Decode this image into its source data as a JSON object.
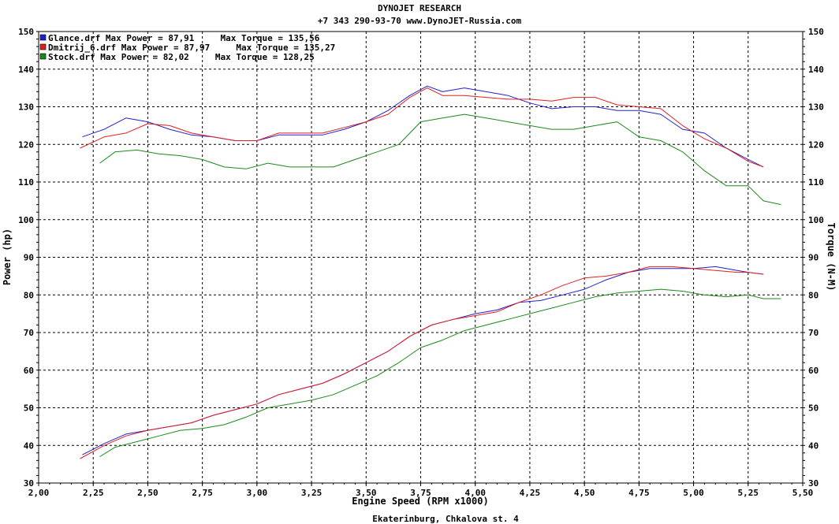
{
  "header": {
    "line1": "DYNOJET RESEARCH",
    "line2": "+7 343 290-93-70 www.DynoJET-Russia.com"
  },
  "footer": "Ekaterinburg, Chkalova st. 4",
  "colors": {
    "glance": "#2020d0",
    "dmitrij": "#e02020",
    "stock": "#1a8a1a",
    "grid": "#000000",
    "background": "#ffffff"
  },
  "chart_data": {
    "type": "line",
    "title": "",
    "xlabel": "Engine Speed (RPM x1000)",
    "ylabel": "Power (hp)",
    "ylabel_right": "Torque (N-M)",
    "xlim": [
      2.0,
      5.5
    ],
    "ylim": [
      30,
      150
    ],
    "ylim_right": [
      30,
      150
    ],
    "x_ticks": [
      "2,00",
      "2,25",
      "2,50",
      "2,75",
      "3,00",
      "3,25",
      "3,50",
      "3,75",
      "4,00",
      "4,25",
      "4,50",
      "4,75",
      "5,00",
      "5,25",
      "5,50"
    ],
    "y_ticks": [
      "30",
      "40",
      "50",
      "60",
      "70",
      "80",
      "90",
      "100",
      "110",
      "120",
      "130",
      "140",
      "150"
    ],
    "grid": true,
    "legend_position": "top-left",
    "legend": [
      {
        "label": "Glance.drf Max Power = 87,91     Max Torque = 135,56",
        "color": "#2020d0"
      },
      {
        "label": "Dmitrij_6.drf Max Power = 87,97     Max Torque = 135,27",
        "color": "#e02020"
      },
      {
        "label": "Stock.drf Max Power = 82,02     Max Torque = 128,25",
        "color": "#1a8a1a"
      }
    ],
    "series": [
      {
        "kind": "torque",
        "ref": "glance",
        "x": [
          2.2,
          2.3,
          2.4,
          2.5,
          2.6,
          2.7,
          2.8,
          2.9,
          3.0,
          3.1,
          3.2,
          3.3,
          3.4,
          3.5,
          3.6,
          3.7,
          3.78,
          3.85,
          3.95,
          4.05,
          4.15,
          4.25,
          4.35,
          4.45,
          4.55,
          4.65,
          4.75,
          4.85,
          4.95,
          5.05,
          5.15,
          5.25,
          5.32
        ],
        "y": [
          122,
          124,
          127,
          126,
          124,
          122.5,
          122,
          121,
          121,
          122.5,
          122.5,
          122.5,
          124,
          126,
          129,
          133,
          135.5,
          134,
          135,
          134,
          133,
          131,
          129.5,
          130,
          130,
          129,
          129,
          128,
          124,
          123,
          119,
          116,
          114
        ]
      },
      {
        "kind": "torque",
        "ref": "dmitrij",
        "x": [
          2.19,
          2.3,
          2.4,
          2.5,
          2.6,
          2.7,
          2.8,
          2.9,
          3.0,
          3.1,
          3.2,
          3.3,
          3.4,
          3.5,
          3.6,
          3.7,
          3.78,
          3.85,
          3.95,
          4.05,
          4.15,
          4.25,
          4.35,
          4.45,
          4.55,
          4.65,
          4.75,
          4.85,
          4.95,
          5.05,
          5.15,
          5.25,
          5.32
        ],
        "y": [
          119,
          122,
          123,
          125.5,
          125,
          123,
          122,
          121,
          121,
          123,
          123,
          123,
          124.5,
          126,
          128,
          132.5,
          135,
          133,
          133,
          132.5,
          132,
          132,
          131.5,
          132.5,
          132.5,
          130.5,
          130,
          129.5,
          125,
          121.5,
          119,
          115.5,
          114
        ]
      },
      {
        "kind": "torque",
        "ref": "stock",
        "x": [
          2.28,
          2.35,
          2.45,
          2.55,
          2.65,
          2.75,
          2.85,
          2.95,
          3.05,
          3.15,
          3.25,
          3.35,
          3.45,
          3.55,
          3.65,
          3.75,
          3.85,
          3.95,
          4.05,
          4.15,
          4.25,
          4.35,
          4.45,
          4.55,
          4.65,
          4.75,
          4.85,
          4.95,
          5.05,
          5.15,
          5.25,
          5.32,
          5.4
        ],
        "y": [
          115,
          118,
          118.5,
          117.5,
          117,
          116,
          114,
          113.5,
          115,
          114,
          114,
          114,
          116,
          118,
          120,
          126,
          127,
          128,
          127,
          126,
          125,
          124,
          124,
          125,
          126,
          122,
          121,
          118,
          113,
          109,
          109,
          105,
          104
        ]
      },
      {
        "kind": "power",
        "ref": "glance",
        "x": [
          2.2,
          2.3,
          2.4,
          2.5,
          2.6,
          2.7,
          2.8,
          2.9,
          3.0,
          3.1,
          3.2,
          3.3,
          3.4,
          3.5,
          3.6,
          3.7,
          3.8,
          3.9,
          4.0,
          4.1,
          4.2,
          4.3,
          4.4,
          4.5,
          4.6,
          4.7,
          4.8,
          4.9,
          5.0,
          5.1,
          5.2,
          5.25,
          5.32
        ],
        "y": [
          37.5,
          40.5,
          43,
          44,
          45,
          46,
          48,
          49.5,
          51,
          53.5,
          55,
          56.5,
          59,
          62,
          65,
          69,
          72,
          73.5,
          75,
          76,
          78,
          78.5,
          80,
          81.5,
          84,
          86,
          87,
          87,
          87,
          87.5,
          86.5,
          86,
          85.5
        ]
      },
      {
        "kind": "power",
        "ref": "dmitrij",
        "x": [
          2.19,
          2.3,
          2.4,
          2.5,
          2.6,
          2.7,
          2.8,
          2.9,
          3.0,
          3.1,
          3.2,
          3.3,
          3.4,
          3.5,
          3.6,
          3.7,
          3.8,
          3.9,
          4.0,
          4.1,
          4.2,
          4.3,
          4.4,
          4.5,
          4.6,
          4.7,
          4.8,
          4.9,
          5.0,
          5.1,
          5.2,
          5.25,
          5.32
        ],
        "y": [
          36.5,
          40,
          42.5,
          44,
          45,
          46,
          48,
          49.5,
          51,
          53.5,
          55,
          56.5,
          59,
          62,
          65,
          69,
          72,
          73.5,
          74.5,
          75.5,
          78,
          80,
          82.5,
          84.5,
          85,
          86,
          87.5,
          87.5,
          87,
          86.5,
          86,
          86,
          85.5
        ]
      },
      {
        "kind": "power",
        "ref": "stock",
        "x": [
          2.28,
          2.35,
          2.45,
          2.55,
          2.65,
          2.75,
          2.85,
          2.95,
          3.05,
          3.15,
          3.25,
          3.35,
          3.45,
          3.55,
          3.65,
          3.75,
          3.85,
          3.95,
          4.05,
          4.15,
          4.25,
          4.35,
          4.45,
          4.55,
          4.65,
          4.75,
          4.85,
          4.95,
          5.05,
          5.15,
          5.25,
          5.32,
          5.4
        ],
        "y": [
          37,
          39.5,
          41,
          42.5,
          44,
          44.5,
          45.5,
          47.5,
          50,
          51,
          52,
          53.5,
          56,
          58.5,
          62,
          66,
          68,
          70.5,
          72,
          73.5,
          75,
          76.5,
          78,
          79.5,
          80.5,
          81,
          81.5,
          81,
          80,
          79.5,
          80,
          79,
          79
        ]
      }
    ]
  }
}
